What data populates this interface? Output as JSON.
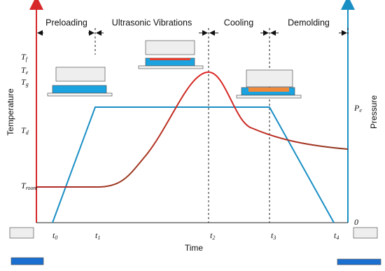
{
  "phases": [
    "Preloading",
    "Ultrasonic Vibrations",
    "Cooling",
    "Demolding"
  ],
  "axes": {
    "left": "Temperature",
    "right": "Pressure",
    "bottom": "Time"
  },
  "temperature_labels": [
    {
      "base": "T",
      "sub": "f"
    },
    {
      "base": "T",
      "sub": "e"
    },
    {
      "base": "T",
      "sub": "g"
    },
    {
      "base": "T",
      "sub": "d"
    },
    {
      "base": "T",
      "sub": "room"
    }
  ],
  "pressure_labels": [
    {
      "base": "P",
      "sub": "e"
    },
    {
      "base": "0",
      "sub": ""
    }
  ],
  "time_labels": [
    {
      "base": "t",
      "sub": "0"
    },
    {
      "base": "t",
      "sub": "1"
    },
    {
      "base": "t",
      "sub": "2"
    },
    {
      "base": "t",
      "sub": "3"
    },
    {
      "base": "t",
      "sub": "4"
    }
  ]
}
